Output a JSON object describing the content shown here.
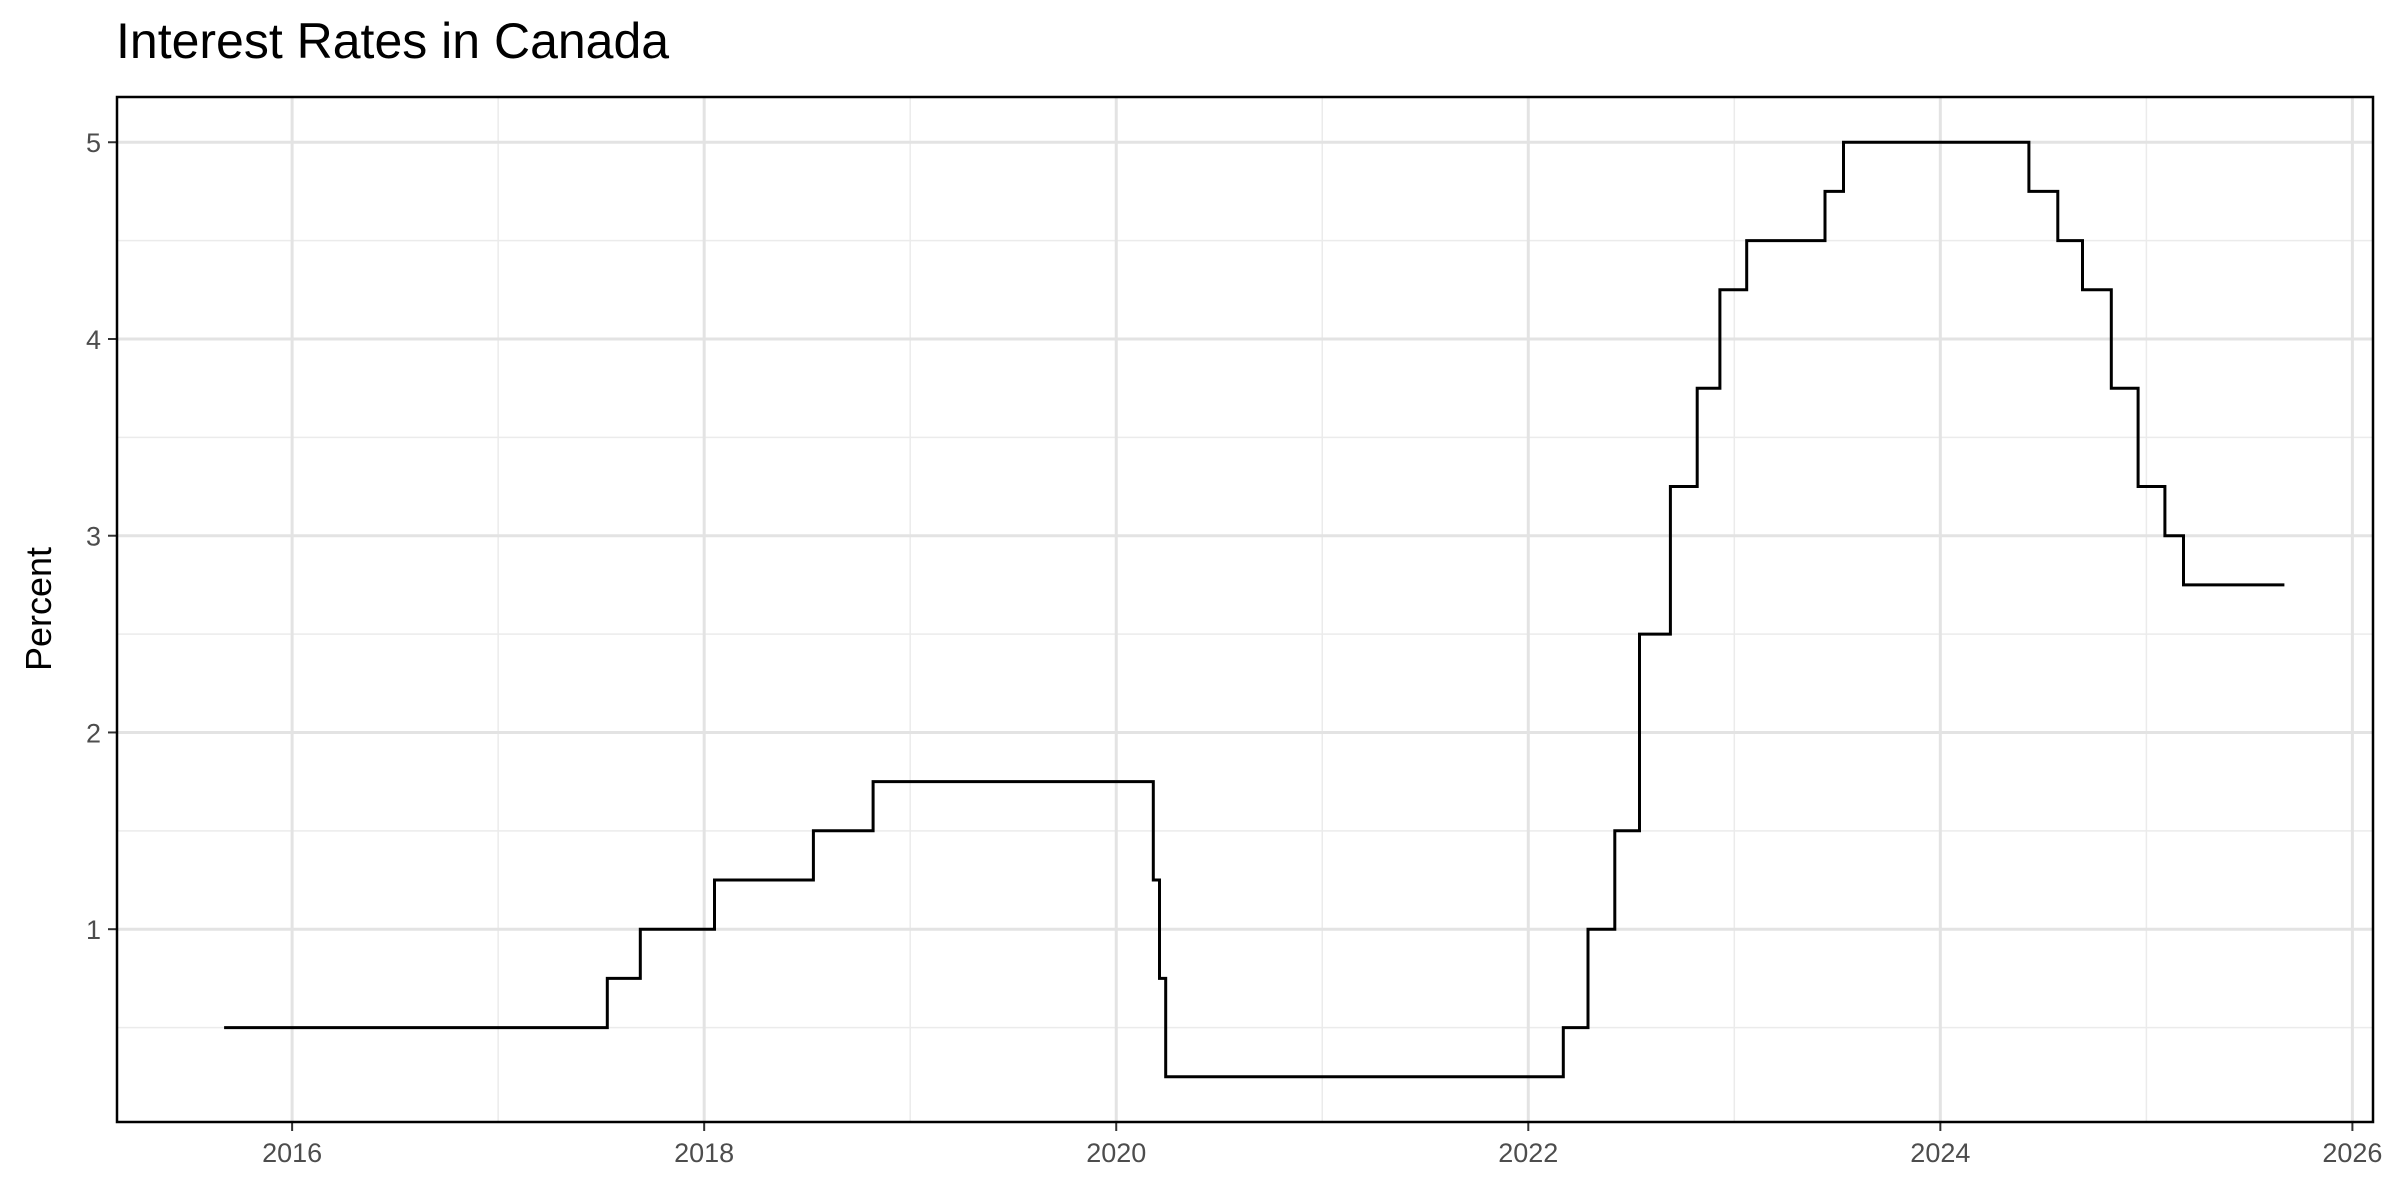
{
  "chart_data": {
    "type": "line",
    "title": "Interest Rates in Canada",
    "xlabel": "",
    "ylabel": "Percent",
    "xlim": [
      2015.15,
      2026.1
    ],
    "ylim": [
      0.02,
      5.23
    ],
    "x_ticks": [
      2016,
      2018,
      2020,
      2022,
      2024,
      2026
    ],
    "x_tick_labels": [
      "2016",
      "2018",
      "2020",
      "2022",
      "2024",
      "2026"
    ],
    "y_ticks": [
      1,
      2,
      3,
      4,
      5
    ],
    "y_tick_labels": [
      "1",
      "2",
      "3",
      "4",
      "5"
    ],
    "grid": true,
    "legend": "none",
    "line_color": "#000000",
    "step": "post",
    "series": [
      {
        "x": [
          2015.67,
          2017.53,
          2017.69,
          2018.05,
          2018.53,
          2018.82,
          2020.18,
          2020.21,
          2020.24,
          2022.17,
          2022.29,
          2022.42,
          2022.54,
          2022.69,
          2022.82,
          2022.93,
          2023.06,
          2023.44,
          2023.53,
          2024.43,
          2024.57,
          2024.69,
          2024.83,
          2024.96,
          2025.09,
          2025.18,
          2025.67
        ],
        "y": [
          0.5,
          0.75,
          1.0,
          1.25,
          1.5,
          1.75,
          1.25,
          0.75,
          0.25,
          0.5,
          1.0,
          1.5,
          2.5,
          3.25,
          3.75,
          4.25,
          4.5,
          4.75,
          5.0,
          4.75,
          4.5,
          4.25,
          3.75,
          3.25,
          3.0,
          2.75,
          2.75
        ]
      }
    ]
  }
}
